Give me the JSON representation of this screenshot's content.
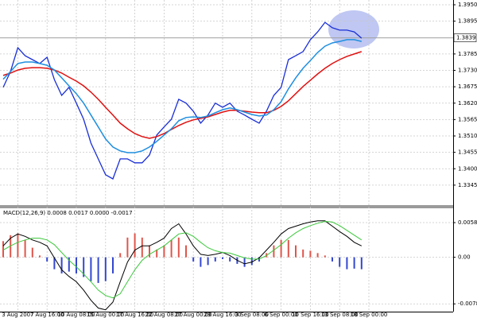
{
  "chart_data": [
    {
      "type": "line",
      "categories": [
        null,
        null,
        "3 Aug 2007",
        null,
        null,
        null,
        "7 Aug 16:00",
        null,
        null,
        null,
        "10 Aug 08:00",
        null,
        null,
        null,
        "15 Aug 00:00",
        null,
        null,
        null,
        "17 Aug 16:00",
        null,
        null,
        null,
        "22 Aug 08:00",
        null,
        null,
        null,
        "27 Aug 00:00",
        null,
        null,
        null,
        "29 Aug 16:00",
        null,
        null,
        null,
        "3 Sep 08:00",
        null,
        null,
        null,
        "6 Sep 00:00",
        null,
        null,
        null,
        "10 Sep 16:00",
        null,
        null,
        null,
        "13 Sep 08:00",
        null,
        null,
        null,
        "18 Sep 00:00"
      ],
      "series": [
        {
          "color": "#1a2fd6",
          "values": [
            1.3673,
            1.3726,
            1.3806,
            1.3779,
            1.3766,
            1.3753,
            1.3774,
            1.3699,
            1.3646,
            1.3673,
            1.362,
            1.3566,
            1.3486,
            1.3433,
            1.338,
            1.3366,
            1.3433,
            1.3433,
            1.342,
            1.342,
            1.3446,
            1.3513,
            1.354,
            1.3566,
            1.3633,
            1.362,
            1.3593,
            1.3553,
            1.358,
            1.362,
            1.3606,
            1.362,
            1.3593,
            1.358,
            1.3566,
            1.3553,
            1.3593,
            1.3646,
            1.3673,
            1.3766,
            1.3779,
            1.3793,
            1.3833,
            1.3859,
            1.3891,
            1.3873,
            1.3865,
            1.3865,
            1.3859,
            1.3838,
            null
          ]
        },
        {
          "color": "#e01010",
          "values": [
            1.3713,
            1.3721,
            1.3731,
            1.3737,
            1.3739,
            1.3739,
            1.3737,
            1.3731,
            1.3721,
            1.3707,
            1.3694,
            1.3678,
            1.3657,
            1.3633,
            1.3606,
            1.358,
            1.3553,
            1.3534,
            1.3518,
            1.3508,
            1.3502,
            1.3508,
            1.3518,
            1.3532,
            1.3545,
            1.3556,
            1.3564,
            1.3569,
            1.3574,
            1.3582,
            1.359,
            1.3596,
            1.3596,
            1.3593,
            1.359,
            1.3588,
            1.3588,
            1.3596,
            1.3609,
            1.3628,
            1.3652,
            1.3676,
            1.3697,
            1.3718,
            1.3737,
            1.3753,
            1.3766,
            1.3777,
            1.3785,
            1.3793,
            null
          ]
        },
        {
          "color": "#1e8fe0",
          "values": [
            1.37,
            1.3726,
            1.3753,
            1.3758,
            1.3758,
            1.3753,
            1.3747,
            1.3731,
            1.3705,
            1.3678,
            1.3652,
            1.362,
            1.358,
            1.354,
            1.35,
            1.3473,
            1.346,
            1.3454,
            1.3454,
            1.346,
            1.3473,
            1.3492,
            1.3513,
            1.3534,
            1.3561,
            1.3572,
            1.3574,
            1.3572,
            1.3577,
            1.3588,
            1.3598,
            1.3604,
            1.3598,
            1.359,
            1.3582,
            1.3577,
            1.358,
            1.3598,
            1.3625,
            1.3668,
            1.3705,
            1.3737,
            1.3763,
            1.379,
            1.3811,
            1.3822,
            1.3827,
            1.3833,
            1.3833,
            1.3827,
            null
          ]
        }
      ],
      "ylim": [
        1.3278,
        1.3966
      ],
      "yticks": [
        {
          "value": 1.395,
          "label": "1.3950"
        },
        1.3895,
        1.3785,
        {
          "value": 1.373,
          "label": "1.3730"
        },
        1.3675,
        {
          "value": 1.362,
          "label": "1.3620"
        },
        1.3565,
        {
          "value": 1.351,
          "label": "1.3510"
        },
        1.3455,
        {
          "value": 1.34,
          "label": "1.3400"
        },
        1.3345
      ],
      "current_price": 1.3839,
      "grid": true
    },
    {
      "type": "combo",
      "title": "MACD(12,26,9) 0.0008 0.0017 0.0000 -0.0017",
      "series": [
        {
          "kind": "bar",
          "color": "#e0554a",
          "negative_color": "#3346d0",
          "values": [
            0.0027,
            0.0037,
            0.004,
            0.0029,
            0.0016,
            0.0003,
            -0.0007,
            -0.002,
            -0.0027,
            -0.0024,
            -0.0027,
            -0.0033,
            -0.004,
            -0.0043,
            -0.004,
            -0.0027,
            0.0007,
            0.0033,
            0.004,
            0.0033,
            0.002,
            0.0013,
            0.002,
            0.0029,
            0.0033,
            0.002,
            -0.0007,
            -0.0016,
            -0.0013,
            -0.0007,
            -0.0003,
            -0.0007,
            -0.0011,
            -0.0016,
            -0.0013,
            -0.0007,
            0.0007,
            0.002,
            0.0029,
            0.0029,
            0.002,
            0.0013,
            0.0011,
            0.0007,
            0.0003,
            -0.0007,
            -0.0016,
            -0.002,
            -0.0019,
            -0.002,
            null
          ]
        },
        {
          "kind": "line",
          "color": "#000000",
          "values": [
            0.0019,
            0.0032,
            0.0039,
            0.0035,
            0.0029,
            0.0025,
            0.0019,
            -0.0001,
            -0.0021,
            -0.0032,
            -0.0041,
            -0.0055,
            -0.0072,
            -0.0085,
            -0.0088,
            -0.0075,
            -0.0041,
            -0.0008,
            0.0012,
            0.0019,
            0.0019,
            0.0025,
            0.0032,
            0.0048,
            0.0056,
            0.0039,
            0.0019,
            0.0005,
            0.0003,
            0.0005,
            0.0008,
            0.0003,
            -0.0005,
            -0.0011,
            -0.0008,
            -0.0001,
            0.0012,
            0.0025,
            0.0039,
            0.0048,
            0.0052,
            0.0056,
            0.0059,
            0.0061,
            0.0061,
            0.0052,
            0.0043,
            0.0035,
            0.0025,
            0.0019,
            null
          ]
        },
        {
          "kind": "line",
          "color": "#3cc83c",
          "values": [
            0.0012,
            0.0019,
            0.0025,
            0.0029,
            0.0032,
            0.0032,
            0.0029,
            0.0021,
            0.0008,
            -0.0005,
            -0.0016,
            -0.0028,
            -0.0041,
            -0.0055,
            -0.0064,
            -0.0068,
            -0.0061,
            -0.0041,
            -0.0021,
            -0.0005,
            0.0005,
            0.0012,
            0.0019,
            0.0029,
            0.0039,
            0.0041,
            0.0035,
            0.0025,
            0.0016,
            0.0011,
            0.0008,
            0.0007,
            0.0003,
            -0.0001,
            -0.0003,
            -0.0003,
            0.0003,
            0.0012,
            0.0021,
            0.0032,
            0.0041,
            0.0048,
            0.0053,
            0.0057,
            0.006,
            0.0059,
            0.0053,
            0.0045,
            0.0037,
            0.0029,
            null
          ]
        }
      ],
      "ylim": [
        -0.0091,
        0.0082
      ],
      "yticks": [
        0.0058,
        {
          "value": 0,
          "label": "0.00"
        },
        -0.0078
      ],
      "grid": true
    }
  ]
}
